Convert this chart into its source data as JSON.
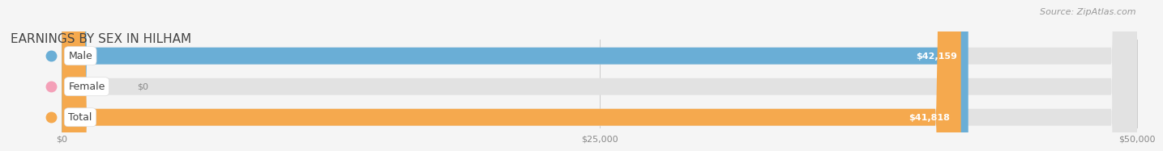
{
  "title": "EARNINGS BY SEX IN HILHAM",
  "source": "Source: ZipAtlas.com",
  "categories": [
    "Male",
    "Female",
    "Total"
  ],
  "values": [
    42159,
    0,
    41818
  ],
  "bar_colors": [
    "#6aaed6",
    "#f4a0b8",
    "#f5a94e"
  ],
  "value_labels": [
    "$42,159",
    "$0",
    "$41,818"
  ],
  "x_ticks": [
    0,
    25000,
    50000
  ],
  "x_tick_labels": [
    "$0",
    "$25,000",
    "$50,000"
  ],
  "xlim_max": 50000,
  "background_color": "#f5f5f5",
  "bar_bg_color": "#e2e2e2",
  "title_fontsize": 11,
  "source_fontsize": 8,
  "tick_fontsize": 8,
  "label_fontsize": 9,
  "value_fontsize": 8
}
